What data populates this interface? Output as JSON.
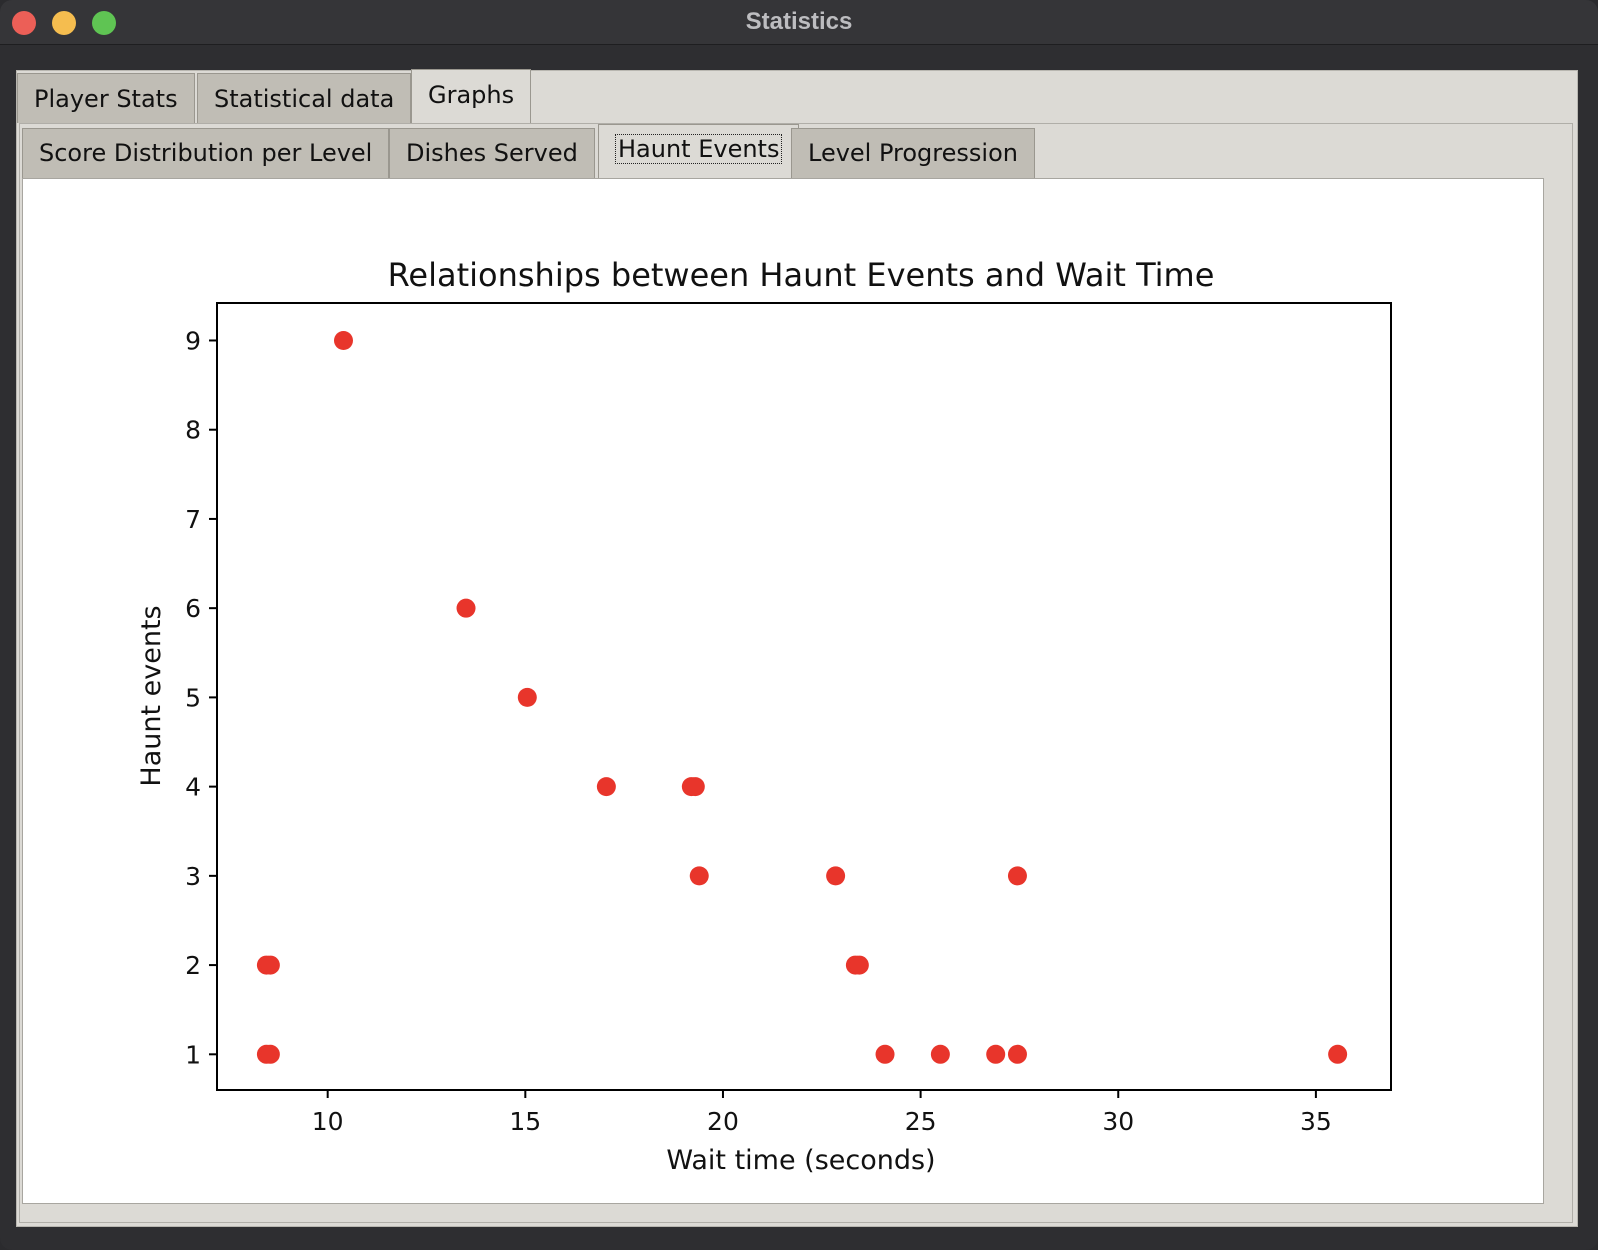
{
  "window": {
    "title": "Statistics"
  },
  "tabs": [
    {
      "label": "Player Stats",
      "active": false
    },
    {
      "label": "Statistical data",
      "active": false
    },
    {
      "label": "Graphs",
      "active": true
    }
  ],
  "graph_tabs": [
    {
      "label": "Score Distribution per Level",
      "active": false
    },
    {
      "label": "Dishes Served",
      "active": false
    },
    {
      "label": "Haunt Events",
      "active": true
    },
    {
      "label": "Level Progression",
      "active": false
    }
  ],
  "chart_data": {
    "type": "scatter",
    "title": "Relationships between Haunt Events and Wait Time",
    "xlabel": "Wait time (seconds)",
    "ylabel": "Haunt events",
    "xlim": [
      7.2,
      36.9
    ],
    "ylim": [
      0.6,
      9.42
    ],
    "xticks": [
      10,
      15,
      20,
      25,
      30,
      35
    ],
    "yticks": [
      1,
      2,
      3,
      4,
      5,
      6,
      7,
      8,
      9
    ],
    "grid": false,
    "color": "#e8352b",
    "points": [
      {
        "x": 10.4,
        "y": 9
      },
      {
        "x": 13.5,
        "y": 6
      },
      {
        "x": 15.05,
        "y": 5
      },
      {
        "x": 17.05,
        "y": 4
      },
      {
        "x": 19.2,
        "y": 4
      },
      {
        "x": 19.3,
        "y": 4
      },
      {
        "x": 19.4,
        "y": 3
      },
      {
        "x": 22.85,
        "y": 3
      },
      {
        "x": 27.45,
        "y": 3
      },
      {
        "x": 8.45,
        "y": 2
      },
      {
        "x": 8.55,
        "y": 2
      },
      {
        "x": 23.35,
        "y": 2
      },
      {
        "x": 23.45,
        "y": 2
      },
      {
        "x": 8.45,
        "y": 1
      },
      {
        "x": 8.55,
        "y": 1
      },
      {
        "x": 24.1,
        "y": 1
      },
      {
        "x": 25.5,
        "y": 1
      },
      {
        "x": 26.9,
        "y": 1
      },
      {
        "x": 27.45,
        "y": 1
      },
      {
        "x": 35.55,
        "y": 1
      }
    ]
  }
}
